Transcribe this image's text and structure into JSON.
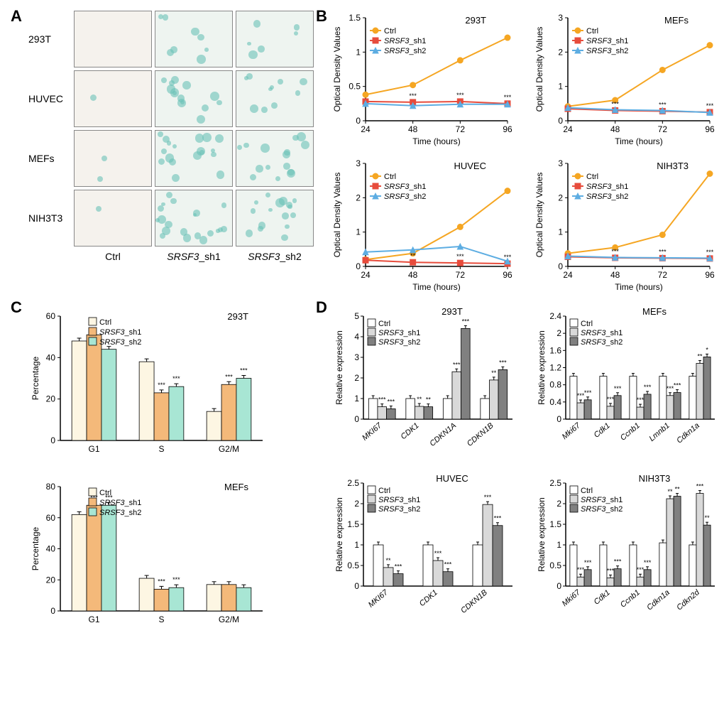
{
  "panelA": {
    "label": "A",
    "rows": [
      "293T",
      "HUVEC",
      "MEFs",
      "NIH3T3"
    ],
    "cols": [
      "Ctrl",
      "SRSF3_sh1",
      "SRSF3_sh2"
    ],
    "staining": [
      [
        0,
        8,
        6
      ],
      [
        1,
        14,
        10
      ],
      [
        2,
        18,
        15
      ],
      [
        1,
        20,
        16
      ]
    ]
  },
  "panelB": {
    "label": "B",
    "charts": [
      {
        "title": "293T",
        "ylabel": "Optical Density Values",
        "xlabel": "Time (hours)",
        "xticks": [
          24,
          48,
          72,
          96
        ],
        "ylim": [
          0,
          1.5
        ],
        "ytick_step": 0.5,
        "series": [
          {
            "name": "Ctrl",
            "color": "#f5a623",
            "marker": "circle",
            "values": [
              0.38,
              0.52,
              0.88,
              1.21
            ]
          },
          {
            "name": "SRSF3_sh1",
            "color": "#e74c3c",
            "marker": "square",
            "values": [
              0.28,
              0.27,
              0.28,
              0.25
            ]
          },
          {
            "name": "SRSF3_sh2",
            "color": "#5dade2",
            "marker": "triangle",
            "values": [
              0.25,
              0.22,
              0.24,
              0.24
            ]
          }
        ],
        "sig": [
          null,
          "***",
          "***",
          "***"
        ]
      },
      {
        "title": "MEFs",
        "ylabel": "Optical Density Values",
        "xlabel": "Time (hours)",
        "xticks": [
          24,
          48,
          72,
          96
        ],
        "ylim": [
          0,
          3
        ],
        "ytick_step": 1,
        "series": [
          {
            "name": "Ctrl",
            "color": "#f5a623",
            "marker": "circle",
            "values": [
              0.42,
              0.6,
              1.48,
              2.2
            ]
          },
          {
            "name": "SRSF3_sh1",
            "color": "#e74c3c",
            "marker": "square",
            "values": [
              0.35,
              0.3,
              0.28,
              0.25
            ]
          },
          {
            "name": "SRSF3_sh2",
            "color": "#5dade2",
            "marker": "triangle",
            "values": [
              0.38,
              0.32,
              0.3,
              0.24
            ]
          }
        ],
        "sig": [
          null,
          "***",
          "***",
          "***"
        ]
      },
      {
        "title": "HUVEC",
        "ylabel": "Optical Density Values",
        "xlabel": "Time (hours)",
        "xticks": [
          24,
          48,
          72,
          96
        ],
        "ylim": [
          0,
          3
        ],
        "ytick_step": 1,
        "series": [
          {
            "name": "Ctrl",
            "color": "#f5a623",
            "marker": "circle",
            "values": [
              0.2,
              0.38,
              1.15,
              2.2
            ]
          },
          {
            "name": "SRSF3_sh1",
            "color": "#e74c3c",
            "marker": "square",
            "values": [
              0.18,
              0.12,
              0.1,
              0.08
            ]
          },
          {
            "name": "SRSF3_sh2",
            "color": "#5dade2",
            "marker": "triangle",
            "values": [
              0.42,
              0.48,
              0.58,
              0.15
            ]
          }
        ],
        "sig": [
          null,
          "**",
          "***",
          "***"
        ]
      },
      {
        "title": "NIH3T3",
        "ylabel": "Optical Density Values",
        "xlabel": "Time (hours)",
        "xticks": [
          24,
          48,
          72,
          96
        ],
        "ylim": [
          0,
          3
        ],
        "ytick_step": 1,
        "series": [
          {
            "name": "Ctrl",
            "color": "#f5a623",
            "marker": "circle",
            "values": [
              0.38,
              0.55,
              0.92,
              2.7
            ]
          },
          {
            "name": "SRSF3_sh1",
            "color": "#e74c3c",
            "marker": "square",
            "values": [
              0.28,
              0.25,
              0.24,
              0.23
            ]
          },
          {
            "name": "SRSF3_sh2",
            "color": "#5dade2",
            "marker": "triangle",
            "values": [
              0.3,
              0.26,
              0.25,
              0.24
            ]
          }
        ],
        "sig": [
          null,
          "***",
          "***",
          "***"
        ]
      }
    ]
  },
  "panelC": {
    "label": "C",
    "charts": [
      {
        "title": "293T",
        "ylabel": "Percentage",
        "categories": [
          "G1",
          "S",
          "G2/M"
        ],
        "ylim": [
          0,
          60
        ],
        "ytick_step": 20,
        "series": [
          {
            "name": "Ctrl",
            "color": "#fdf6e3"
          },
          {
            "name": "SRSF3_sh1",
            "color": "#f4b97a"
          },
          {
            "name": "SRSF3_sh2",
            "color": "#a8e6d4"
          }
        ],
        "values": [
          [
            48,
            51,
            44
          ],
          [
            38,
            23,
            26
          ],
          [
            14,
            27,
            30
          ]
        ],
        "sig": [
          [
            "",
            "",
            ""
          ],
          [
            "",
            "***",
            "***"
          ],
          [
            "",
            "***",
            "***"
          ]
        ]
      },
      {
        "title": "MEFs",
        "ylabel": "Percentage",
        "categories": [
          "G1",
          "S",
          "G2/M"
        ],
        "ylim": [
          0,
          80
        ],
        "ytick_step": 20,
        "series": [
          {
            "name": "Ctrl",
            "color": "#fdf6e3"
          },
          {
            "name": "SRSF3_sh1",
            "color": "#f4b97a"
          },
          {
            "name": "SRSF3_sh2",
            "color": "#a8e6d4"
          }
        ],
        "values": [
          [
            62,
            68,
            68
          ],
          [
            21,
            14,
            15
          ],
          [
            17,
            17,
            15
          ]
        ],
        "sig": [
          [
            "",
            "***",
            "***"
          ],
          [
            "",
            "***",
            "***"
          ],
          [
            "",
            "",
            ""
          ]
        ]
      }
    ]
  },
  "panelD": {
    "label": "D",
    "legend": [
      "Ctrl",
      "SRSF3_sh1",
      "SRSF3_sh2"
    ],
    "legend_colors": [
      "#ffffff",
      "#d9d9d9",
      "#808080"
    ],
    "charts": [
      {
        "title": "293T",
        "ylabel": "Relative expression",
        "genes": [
          "MKI67",
          "CDK1",
          "CDKN1A",
          "CDKN1B"
        ],
        "ylim": [
          0,
          5
        ],
        "ytick_step": 1,
        "values": [
          [
            1.0,
            0.6,
            0.5
          ],
          [
            1.0,
            0.62,
            0.6
          ],
          [
            1.0,
            2.3,
            4.4
          ],
          [
            1.0,
            1.9,
            2.4
          ]
        ],
        "sig": [
          [
            "",
            "***",
            "***"
          ],
          [
            "",
            "**",
            "**"
          ],
          [
            "",
            "***",
            "***"
          ],
          [
            "",
            "**",
            "***"
          ]
        ]
      },
      {
        "title": "MEFs",
        "ylabel": "Relative expression",
        "genes": [
          "Mki67",
          "Cdk1",
          "Ccnb1",
          "Lmnb1",
          "Cdkn1a"
        ],
        "ylim": [
          0,
          2.4
        ],
        "ytick_step": 0.4,
        "values": [
          [
            1.0,
            0.38,
            0.45
          ],
          [
            1.0,
            0.3,
            0.55
          ],
          [
            1.0,
            0.28,
            0.58
          ],
          [
            1.0,
            0.55,
            0.62
          ],
          [
            1.0,
            1.3,
            1.45
          ]
        ],
        "sig": [
          [
            "",
            "***",
            "***"
          ],
          [
            "",
            "***",
            "***"
          ],
          [
            "",
            "***",
            "***"
          ],
          [
            "",
            "***",
            "***"
          ],
          [
            "",
            "**",
            "*"
          ]
        ]
      },
      {
        "title": "HUVEC",
        "ylabel": "Relative expression",
        "genes": [
          "MKI67",
          "CDK1",
          "CDKN1B"
        ],
        "ylim": [
          0,
          2.5
        ],
        "ytick_step": 0.5,
        "values": [
          [
            1.0,
            0.45,
            0.3
          ],
          [
            1.0,
            0.62,
            0.35
          ],
          [
            1.0,
            1.98,
            1.47
          ]
        ],
        "sig": [
          [
            "",
            "**",
            "***"
          ],
          [
            "",
            "***",
            "***"
          ],
          [
            "",
            "***",
            "***"
          ]
        ]
      },
      {
        "title": "NIH3T3",
        "ylabel": "Relative expression",
        "genes": [
          "Mki67",
          "Cdk1",
          "Ccnb1",
          "Cdkn1a",
          "Cdkn2d"
        ],
        "ylim": [
          0,
          2.5
        ],
        "ytick_step": 0.5,
        "values": [
          [
            1.0,
            0.22,
            0.4
          ],
          [
            1.0,
            0.2,
            0.42
          ],
          [
            1.0,
            0.22,
            0.4
          ],
          [
            1.05,
            2.12,
            2.18
          ],
          [
            1.0,
            2.25,
            1.48
          ]
        ],
        "sig": [
          [
            "",
            "***",
            "***"
          ],
          [
            "",
            "***",
            "***"
          ],
          [
            "",
            "***",
            "***"
          ],
          [
            "",
            "**",
            "**"
          ],
          [
            "",
            "***",
            "**"
          ]
        ]
      }
    ]
  }
}
